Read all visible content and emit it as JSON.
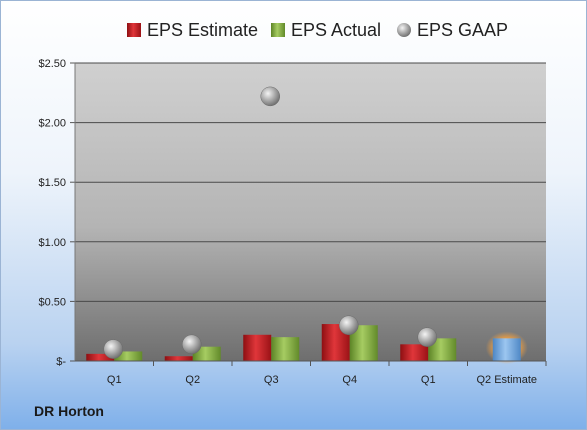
{
  "company": "DR Horton",
  "chart_data": {
    "type": "bar",
    "categories": [
      "Q1",
      "Q2",
      "Q3",
      "Q4",
      "Q1",
      "Q2 Estimate"
    ],
    "series": [
      {
        "name": "EPS Estimate",
        "values": [
          0.06,
          0.04,
          0.22,
          0.31,
          0.14,
          null
        ],
        "color": "#c0181c"
      },
      {
        "name": "EPS Actual",
        "values": [
          0.08,
          0.12,
          0.2,
          0.3,
          0.19,
          null
        ],
        "color": "#7eaa3a"
      },
      {
        "name": "EPS GAAP",
        "type": "scatter",
        "values": [
          0.1,
          0.14,
          2.22,
          0.3,
          0.2,
          null
        ],
        "color": "#9a9a9a"
      }
    ],
    "estimate_bar": {
      "category": "Q2 Estimate",
      "value": 0.19,
      "color": "#6aa2dc",
      "glow": "#f3a444"
    },
    "y_ticks": [
      "$-",
      "$0.50",
      "$1.00",
      "$1.50",
      "$2.00",
      "$2.50"
    ],
    "ylim": [
      0,
      2.5
    ],
    "grid": true,
    "legend_position": "top"
  }
}
